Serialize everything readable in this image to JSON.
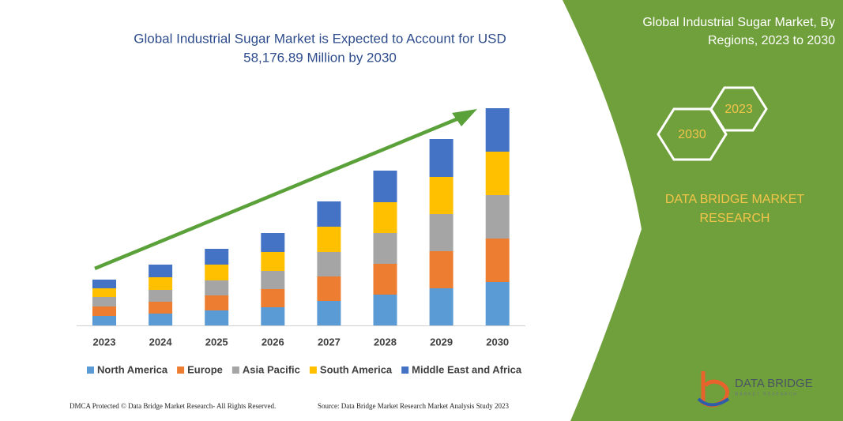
{
  "chart_data": {
    "type": "stacked-bar",
    "title": [
      "Global Industrial Sugar Market is Expected to Account for USD",
      "58,176.89 Million by 2030"
    ],
    "categories": [
      "2023",
      "2024",
      "2025",
      "2026",
      "2027",
      "2028",
      "2029",
      "2030"
    ],
    "series": [
      {
        "name": "North America",
        "color": "#5b9bd5",
        "values": [
          12,
          15,
          19,
          23,
          31,
          39,
          47,
          55
        ]
      },
      {
        "name": "Europe",
        "color": "#ed7d31",
        "values": [
          12,
          15,
          19,
          23,
          31,
          39,
          47,
          55
        ]
      },
      {
        "name": "Asia Pacific",
        "color": "#a5a5a5",
        "values": [
          12,
          15,
          19,
          23,
          31,
          39,
          47,
          55
        ]
      },
      {
        "name": "South America",
        "color": "#ffc000",
        "values": [
          11,
          16,
          20,
          24,
          32,
          39,
          47,
          55
        ]
      },
      {
        "name": "Middle East and Africa",
        "color": "#4472c4",
        "values": [
          11,
          16,
          20,
          24,
          32,
          40,
          48,
          55
        ]
      }
    ]
  },
  "panel": {
    "title": [
      "Global Industrial Sugar Market, By",
      "Regions, 2023 to 2030"
    ],
    "hex_top": "2023",
    "hex_bottom": "2030",
    "brand": [
      "DATA BRIDGE MARKET",
      "RESEARCH"
    ]
  },
  "logo": {
    "name": "DATA BRIDGE",
    "tagline": "MARKET RESEARCH"
  },
  "footer": {
    "left": "DMCA Protected © Data Bridge Market Research- All Rights Reserved.",
    "right": "Source: Data Bridge Market Research  Market Analysis Study 2023"
  }
}
